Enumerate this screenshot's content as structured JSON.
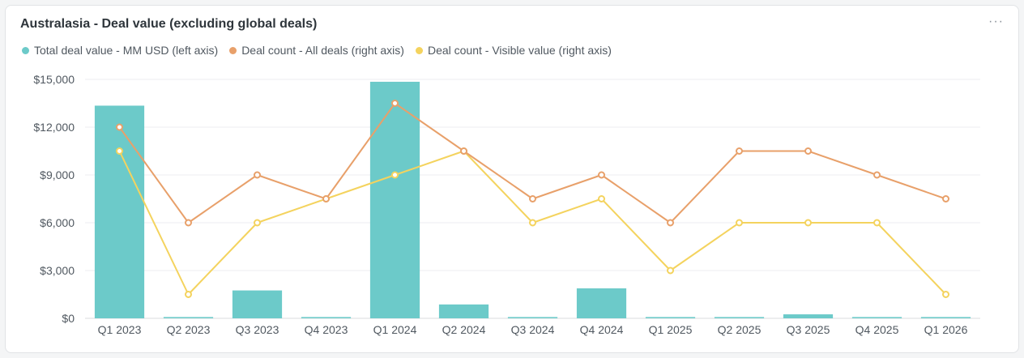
{
  "header": {
    "title": "Australasia - Deal value (excluding global deals)",
    "menu_label": "···"
  },
  "colors": {
    "bar": "#6ccac9",
    "all_deals": "#e8a06a",
    "visible": "#f4d35e",
    "grid": "#eceef0"
  },
  "chart_data": {
    "type": "bar",
    "title": "Australasia - Deal value (excluding global deals)",
    "categories": [
      "Q1 2023",
      "Q2 2023",
      "Q3 2023",
      "Q4 2023",
      "Q1 2024",
      "Q2 2024",
      "Q3 2024",
      "Q4 2024",
      "Q1 2025",
      "Q2 2025",
      "Q3 2025",
      "Q4 2025",
      "Q1 2026"
    ],
    "y_ticks": [
      "$0",
      "$3,000",
      "$6,000",
      "$9,000",
      "$12,000",
      "$15,000"
    ],
    "ylim": [
      0,
      15000
    ],
    "series": [
      {
        "name": "Total deal value - MM USD (left axis)",
        "type": "bar",
        "axis": "left",
        "values": [
          13350,
          80,
          1750,
          80,
          14850,
          870,
          80,
          1880,
          80,
          80,
          250,
          80,
          80
        ]
      },
      {
        "name": "Deal count - All deals (right axis)",
        "type": "line",
        "axis": "right",
        "values": [
          12000,
          6000,
          9000,
          7500,
          13500,
          10500,
          7500,
          9000,
          6000,
          10500,
          10500,
          9000,
          7500
        ]
      },
      {
        "name": "Deal count - Visible value (right axis)",
        "type": "line",
        "axis": "right",
        "values": [
          10500,
          1500,
          6000,
          7500,
          9000,
          10500,
          6000,
          7500,
          3000,
          6000,
          6000,
          6000,
          1500
        ]
      }
    ]
  }
}
